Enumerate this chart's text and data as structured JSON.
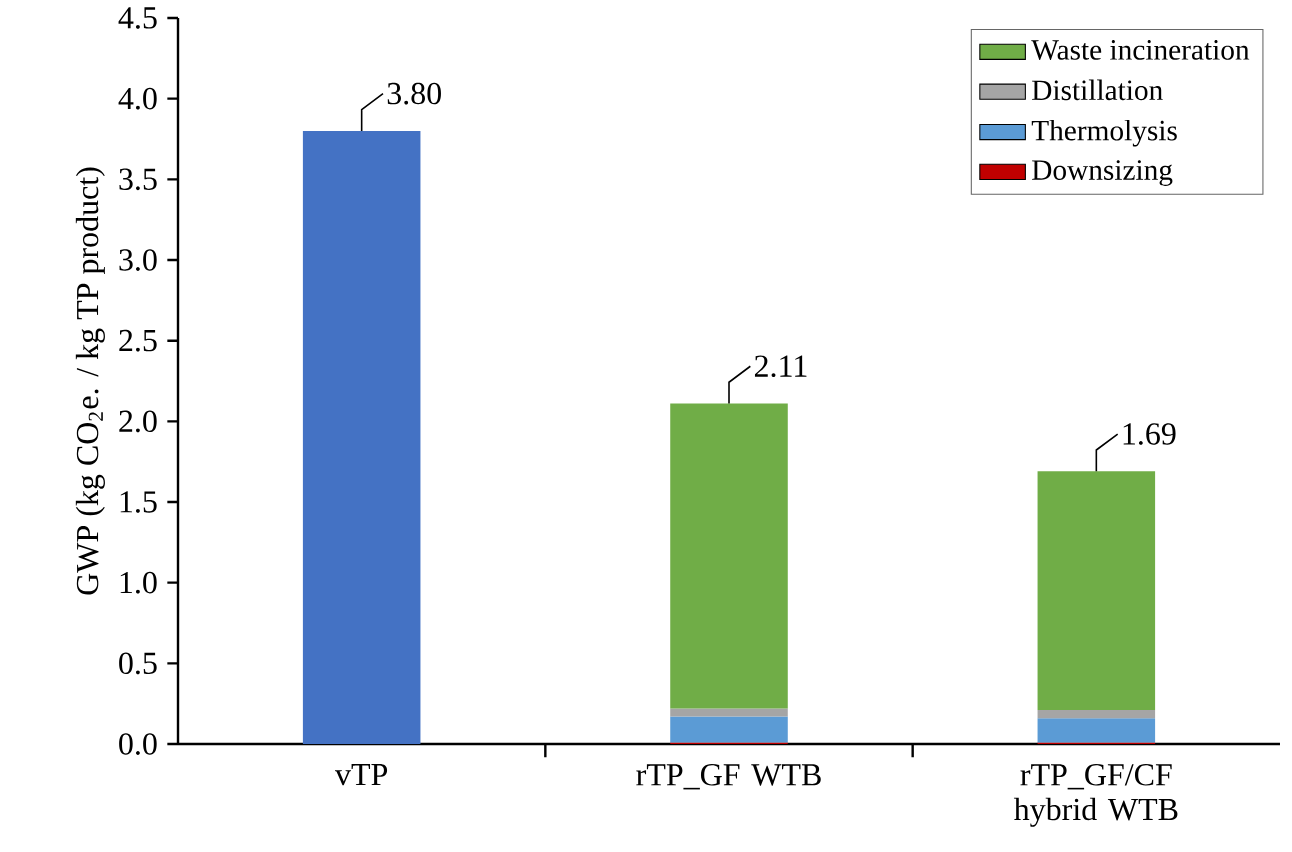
{
  "chart_data": {
    "type": "bar",
    "stacked": true,
    "ylabel": "GWP (kg CO$_{2}$e. / kg TP product)",
    "categories": [
      "vTP",
      "rTP_GF WTB",
      "rTP_GF/CF hybrid WTB"
    ],
    "series": [
      {
        "color": "#4472c4",
        "values": [
          3.8,
          null,
          null
        ]
      },
      {
        "name": "Downsizing",
        "color": "#c00000",
        "values": [
          null,
          0.01,
          0.01
        ]
      },
      {
        "name": "Thermolysis",
        "color": "#5b9bd5",
        "values": [
          null,
          0.16,
          0.15
        ]
      },
      {
        "name": "Distillation",
        "color": "#a5a5a5",
        "values": [
          null,
          0.05,
          0.05
        ]
      },
      {
        "name": "Waste incineration",
        "color": "#70ad47",
        "values": [
          null,
          1.89,
          1.48
        ]
      }
    ],
    "totals": [
      "3.80",
      "2.11",
      "1.69"
    ],
    "ylim": [
      0,
      4.5
    ],
    "yticks": [
      {
        "value": 0,
        "label": "0.0"
      },
      {
        "value": 0.5,
        "label": "0.5"
      },
      {
        "value": 1,
        "label": "1.0"
      },
      {
        "value": 1.5,
        "label": "1.5"
      },
      {
        "value": 2,
        "label": "2.0"
      },
      {
        "value": 2.5,
        "label": "2.5"
      },
      {
        "value": 3,
        "label": "3.0"
      },
      {
        "value": 3.5,
        "label": "3.5"
      },
      {
        "value": 4,
        "label": "4.0"
      },
      {
        "value": 4.5,
        "label": "4.5"
      }
    ],
    "legend": "top right",
    "grid": false
  }
}
